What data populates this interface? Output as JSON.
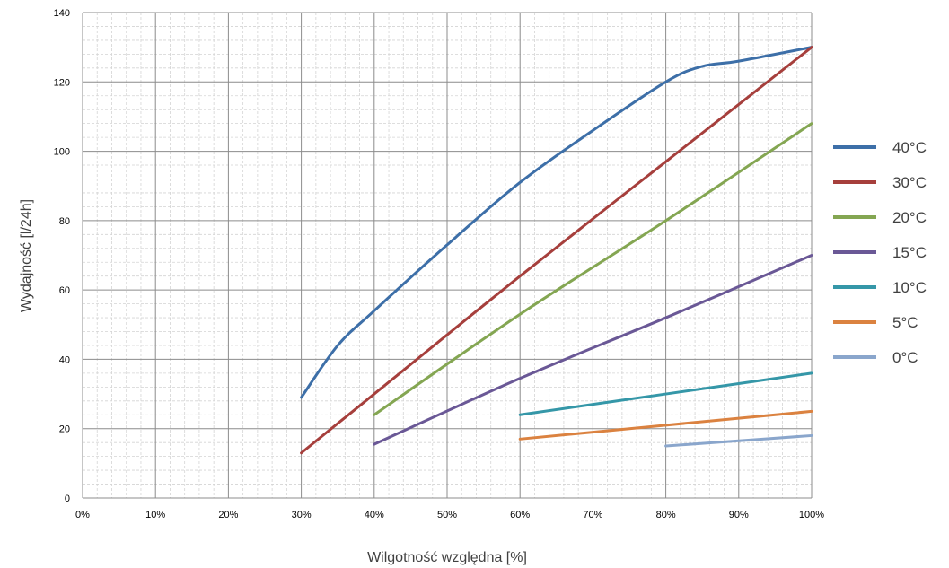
{
  "chart_data": {
    "type": "line",
    "title": "",
    "xlabel": "Wilgotność względna [%]",
    "ylabel": "Wydajność [l/24h]",
    "xlim": [
      0,
      100
    ],
    "ylim": [
      0,
      140
    ],
    "x_ticks": [
      "0%",
      "10%",
      "20%",
      "30%",
      "40%",
      "50%",
      "60%",
      "70%",
      "80%",
      "90%",
      "100%"
    ],
    "y_ticks": [
      "0",
      "20",
      "40",
      "60",
      "80",
      "100",
      "120",
      "140"
    ],
    "grid": true,
    "legend_position": "right",
    "series": [
      {
        "name": "40°C",
        "color": "#3d6fa8",
        "x": [
          30,
          35,
          40,
          50,
          60,
          70,
          80,
          85,
          90,
          100
        ],
        "y": [
          29,
          44,
          54,
          73,
          91,
          106,
          120,
          124.5,
          126,
          130
        ]
      },
      {
        "name": "30°C",
        "color": "#a63f3c",
        "x": [
          30,
          40,
          60,
          80,
          100
        ],
        "y": [
          13,
          30,
          64,
          97,
          130
        ]
      },
      {
        "name": "20°C",
        "color": "#84a652",
        "x": [
          40,
          60,
          80,
          100
        ],
        "y": [
          24,
          53,
          80,
          108
        ]
      },
      {
        "name": "15°C",
        "color": "#6a5896",
        "x": [
          40,
          60,
          80,
          100
        ],
        "y": [
          15.5,
          34.5,
          52,
          70
        ]
      },
      {
        "name": "10°C",
        "color": "#3597a8",
        "x": [
          60,
          80,
          100
        ],
        "y": [
          24,
          30,
          36
        ]
      },
      {
        "name": "5°C",
        "color": "#db8240",
        "x": [
          60,
          80,
          100
        ],
        "y": [
          17,
          21,
          25
        ]
      },
      {
        "name": "0°C",
        "color": "#8aa6cc",
        "x": [
          80,
          90,
          100
        ],
        "y": [
          15,
          16.5,
          18
        ]
      }
    ]
  }
}
